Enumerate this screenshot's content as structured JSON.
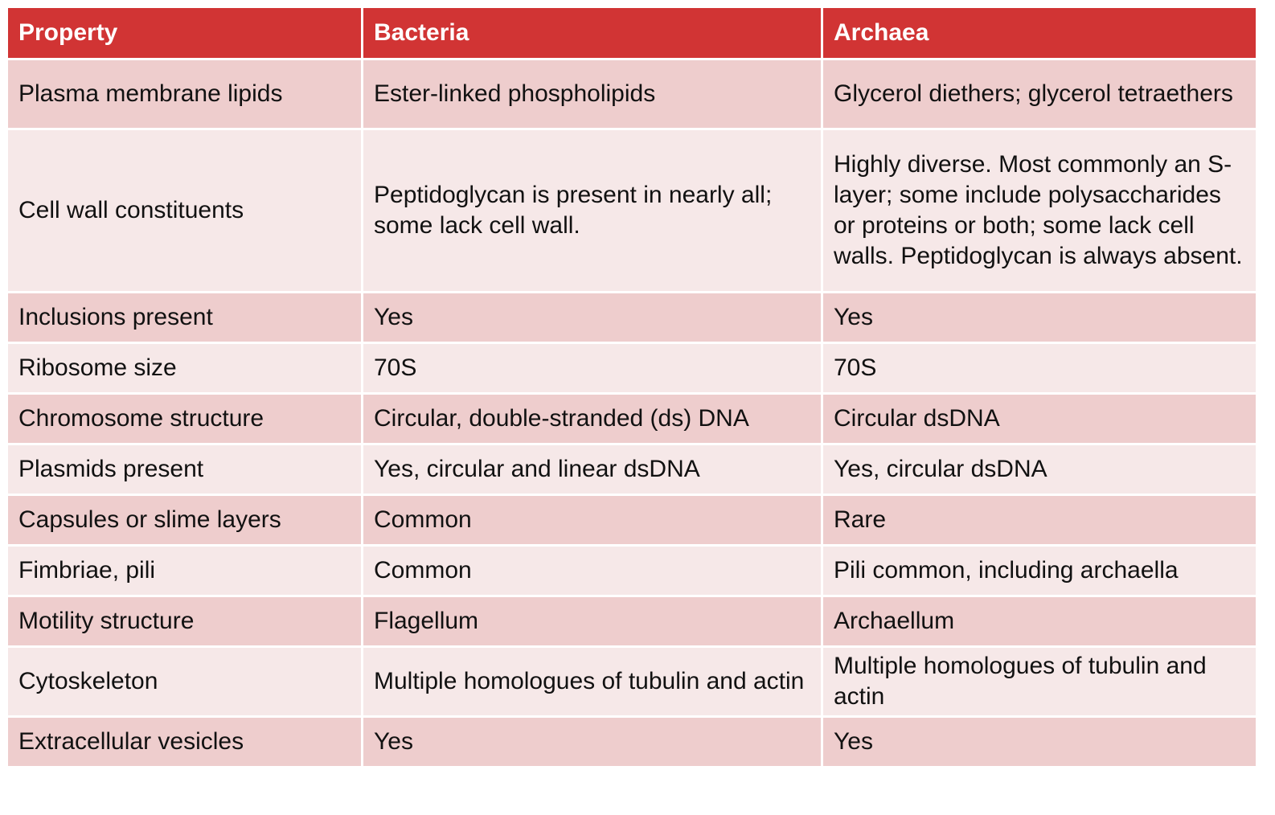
{
  "header": {
    "col1": "Property",
    "col2": "Bacteria",
    "col3": "Archaea"
  },
  "rows": [
    {
      "property": "Plasma membrane lipids",
      "bacteria": "Ester-linked phospholipids",
      "archaea": "Glycerol diethers; glycerol tetraethers"
    },
    {
      "property": "Cell wall constituents",
      "bacteria": "Peptidoglycan is present in nearly all; some lack cell wall.",
      "archaea": "Highly diverse. Most commonly an S-layer; some include polysaccharides or proteins or both; some lack cell walls. Peptidoglycan is always absent."
    },
    {
      "property": "Inclusions present",
      "bacteria": "Yes",
      "archaea": "Yes"
    },
    {
      "property": "Ribosome size",
      "bacteria": "70S",
      "archaea": "70S"
    },
    {
      "property": "Chromosome structure",
      "bacteria": "Circular, double-stranded (ds) DNA",
      "archaea": "Circular dsDNA"
    },
    {
      "property": "Plasmids present",
      "bacteria": "Yes, circular and linear dsDNA",
      "archaea": "Yes, circular dsDNA"
    },
    {
      "property": "Capsules or slime layers",
      "bacteria": "Common",
      "archaea": "Rare"
    },
    {
      "property": "Fimbriae, pili",
      "bacteria": "Common",
      "archaea": "Pili common, including archaella"
    },
    {
      "property": "Motility structure",
      "bacteria": "Flagellum",
      "archaea": "Archaellum"
    },
    {
      "property": "Cytoskeleton",
      "bacteria": "Multiple homologues of tubulin and actin",
      "archaea": "Multiple homologues of tubulin and actin"
    },
    {
      "property": "Extracellular vesicles",
      "bacteria": "Yes",
      "archaea": "Yes"
    }
  ],
  "colors": {
    "header_bg": "#d13434",
    "row_odd_bg": "#eecdcd",
    "row_even_bg": "#f6e8e8"
  }
}
